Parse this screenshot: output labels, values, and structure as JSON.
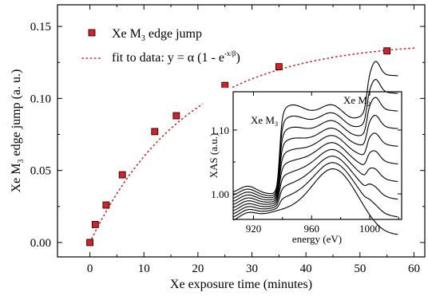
{
  "chart_data": [
    {
      "type": "scatter",
      "xlabel": "Xe exposure time (minutes)",
      "ylabel_prefix": "Xe M",
      "ylabel_sub": "3",
      "ylabel_suffix": " edge jump (a. u.)",
      "xlim": [
        -6,
        62
      ],
      "ylim": [
        -0.01,
        0.165
      ],
      "xticks": [
        0,
        10,
        20,
        30,
        40,
        50,
        60
      ],
      "xtick_labels": [
        "0",
        "10",
        "20",
        "30",
        "40",
        "50",
        "60"
      ],
      "yticks": [
        0.0,
        0.05,
        0.1,
        0.15
      ],
      "ytick_labels": [
        "0.00",
        "0.05",
        "0.10",
        "0.15"
      ],
      "legend_placement": "top-left",
      "series": [
        {
          "name_prefix": "Xe M",
          "name_sub": "3",
          "name_suffix": " edge jump",
          "marker": "square",
          "color": "#d42027",
          "x": [
            0,
            1,
            3,
            6,
            12,
            16,
            25,
            35,
            55
          ],
          "y": [
            0.0,
            0.0125,
            0.026,
            0.047,
            0.077,
            0.088,
            0.109,
            0.122,
            0.133
          ]
        },
        {
          "name_prefix": "fit to data: y = α (1 - e",
          "name_sup": "-x/β",
          "name_suffix": ")",
          "style": "dotted",
          "color": "#d42027",
          "fit_alpha": 0.14,
          "fit_beta": 18
        }
      ]
    },
    {
      "type": "line",
      "role": "inset",
      "xlabel": "energy (eV)",
      "ylabel": "XAS (a.u.)",
      "xlim": [
        906,
        1022
      ],
      "ylim": [
        0.96,
        1.16
      ],
      "xticks": [
        920,
        960,
        1000
      ],
      "xtick_labels": [
        "920",
        "960",
        "1000"
      ],
      "yticks": [
        1.0,
        1.1
      ],
      "ytick_labels": [
        "1.00",
        "1.10"
      ],
      "annotations": [
        {
          "text_prefix": "Xe M",
          "text_sub": "3",
          "x": 940,
          "y": 1.12
        },
        {
          "text_prefix": "Xe M",
          "text_sub": "2",
          "x": 1003,
          "y": 1.147
        }
      ],
      "curve_count": 10
    }
  ]
}
